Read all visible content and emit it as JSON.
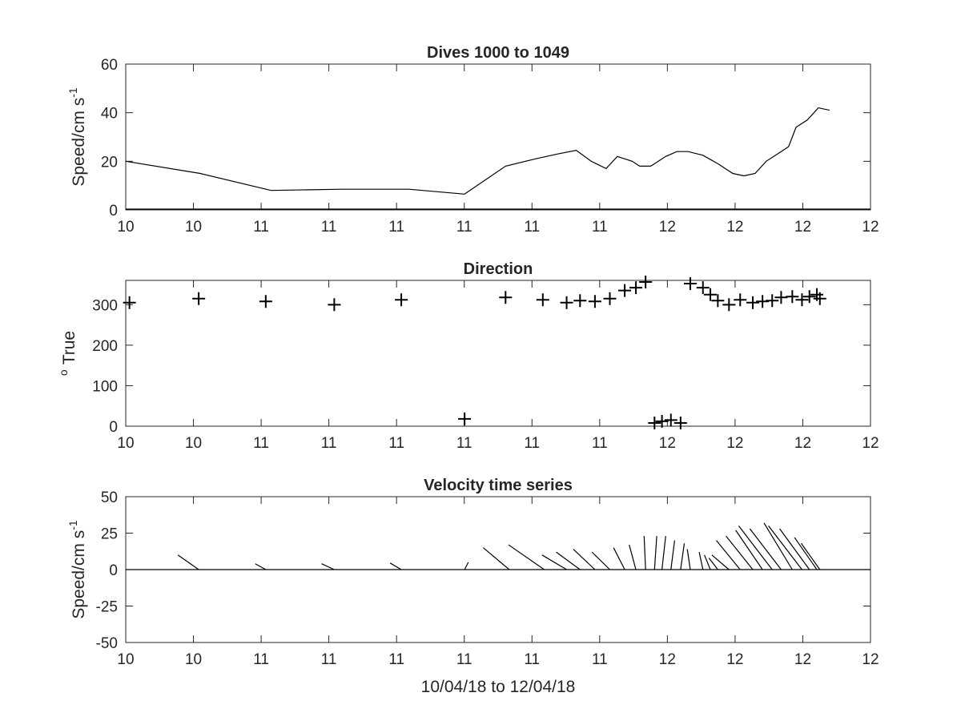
{
  "chart_data": [
    {
      "type": "line",
      "title": "Dives 1000 to 1049",
      "ylabel": "Speed/cm s",
      "ylabel_superscript": "-1",
      "xlim": [
        0,
        10
      ],
      "ylim": [
        0,
        60
      ],
      "y_ticks": [
        0,
        20,
        40,
        60
      ],
      "x_tick_labels": [
        "10",
        "10",
        "11",
        "11",
        "11",
        "11",
        "11",
        "11",
        "12",
        "12",
        "12",
        "12"
      ],
      "grid": false,
      "x": [
        0.0,
        1.0,
        1.95,
        2.9,
        3.8,
        4.55,
        5.1,
        5.5,
        5.8,
        6.05,
        6.25,
        6.45,
        6.6,
        6.8,
        6.9,
        7.05,
        7.25,
        7.4,
        7.55,
        7.75,
        7.95,
        8.15,
        8.3,
        8.45,
        8.6,
        8.75,
        8.9,
        9.0,
        9.15,
        9.3,
        9.45
      ],
      "values": [
        20,
        15,
        8,
        8.5,
        8.5,
        6.5,
        18,
        21,
        23,
        24.5,
        20,
        17,
        22,
        20,
        18,
        18,
        22,
        24,
        24,
        22.5,
        19,
        15,
        14,
        15,
        20,
        23,
        26,
        34,
        37,
        42,
        41
      ]
    },
    {
      "type": "scatter",
      "title": "Direction",
      "ylabel": "True",
      "ylabel_prefix": "o",
      "xlim": [
        0,
        10
      ],
      "ylim": [
        0,
        360
      ],
      "y_ticks": [
        0,
        100,
        200,
        300
      ],
      "x_tick_labels": [
        "10",
        "10",
        "11",
        "11",
        "11",
        "11",
        "11",
        "11",
        "12",
        "12",
        "12",
        "12"
      ],
      "grid": false,
      "x": [
        0.05,
        0.98,
        1.88,
        2.8,
        3.7,
        4.55,
        5.1,
        5.6,
        5.92,
        6.1,
        6.3,
        6.5,
        6.7,
        6.85,
        6.98,
        7.1,
        7.2,
        7.32,
        7.45,
        7.58,
        7.75,
        7.85,
        7.95,
        8.1,
        8.25,
        8.42,
        8.55,
        8.68,
        8.8,
        8.95,
        9.08,
        9.18,
        9.28,
        9.32
      ],
      "values": [
        305,
        315,
        308,
        300,
        312,
        18,
        318,
        312,
        305,
        310,
        308,
        315,
        335,
        342,
        356,
        8,
        12,
        15,
        8,
        352,
        342,
        325,
        310,
        300,
        312,
        305,
        308,
        310,
        318,
        320,
        312,
        320,
        325,
        315
      ]
    },
    {
      "type": "stick",
      "title": "Velocity time series",
      "ylabel": "Speed/cm s",
      "ylabel_superscript": "-1",
      "xlabel": "10/04/18 to 12/04/18",
      "xlim": [
        0,
        10
      ],
      "ylim": [
        -50,
        50
      ],
      "y_ticks": [
        -50,
        -25,
        0,
        25,
        50
      ],
      "x_tick_labels": [
        "10",
        "10",
        "11",
        "11",
        "11",
        "11",
        "11",
        "11",
        "12",
        "12",
        "12",
        "12"
      ],
      "grid": false,
      "x": [
        0.98,
        1.88,
        2.8,
        3.7,
        4.55,
        5.15,
        5.62,
        5.92,
        6.1,
        6.3,
        6.5,
        6.7,
        6.85,
        6.98,
        7.1,
        7.2,
        7.32,
        7.45,
        7.58,
        7.75,
        7.85,
        7.95,
        8.1,
        8.25,
        8.42,
        8.55,
        8.68,
        8.8,
        8.95,
        9.08,
        9.18,
        9.28,
        9.32
      ],
      "u": [
        -0.28,
        -0.14,
        -0.17,
        -0.15,
        0.05,
        -0.35,
        -0.48,
        -0.33,
        -0.32,
        -0.29,
        -0.24,
        -0.15,
        -0.09,
        -0.02,
        0.03,
        0.05,
        0.05,
        0.05,
        -0.04,
        -0.05,
        -0.08,
        -0.12,
        -0.23,
        -0.32,
        -0.36,
        -0.36,
        -0.45,
        -0.42,
        -0.38,
        -0.45,
        -0.4,
        -0.3,
        -0.25
      ],
      "v": [
        10,
        4,
        4,
        4.5,
        5,
        15,
        17,
        10,
        12,
        14,
        12,
        15,
        17,
        23,
        23,
        23,
        20,
        18,
        14,
        12,
        10,
        8,
        10,
        20,
        23,
        27,
        30,
        28,
        32,
        30,
        28,
        22,
        18
      ]
    }
  ]
}
